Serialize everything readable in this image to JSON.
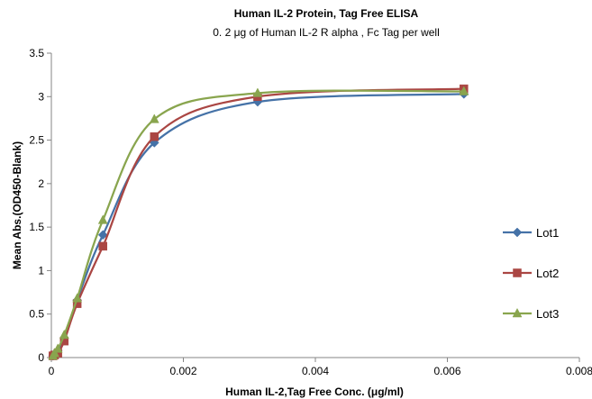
{
  "chart_data": {
    "type": "line",
    "title": "Human IL-2 Protein, Tag Free ELISA",
    "subtitle": "0. 2 μg of  Human IL-2 R alpha , Fc Tag  per well",
    "xlabel": "Human IL-2,Tag Free Conc. (μg/ml)",
    "ylabel": "Mean Abs.(OD450-Blank)",
    "xlim": [
      0,
      0.008
    ],
    "ylim": [
      0,
      3.5
    ],
    "xticks": [
      "0",
      "0.002",
      "0.004",
      "0.006",
      "0.008"
    ],
    "yticks": [
      "0",
      "0.5",
      "1",
      "1.5",
      "2",
      "2.5",
      "3",
      "3.5"
    ],
    "grid": false,
    "legend": "right",
    "series": [
      {
        "name": "Lot1",
        "color": "#4572A7",
        "marker": "diamond",
        "x": [
          2.44e-05,
          4.88e-05,
          9.77e-05,
          0.000195,
          0.000391,
          0.000781,
          0.00156,
          0.003125,
          0.00625
        ],
        "y": [
          0.02,
          0.04,
          0.08,
          0.22,
          0.66,
          1.41,
          2.47,
          2.94,
          3.03
        ]
      },
      {
        "name": "Lot2",
        "color": "#AA4643",
        "marker": "square",
        "x": [
          2.44e-05,
          4.88e-05,
          9.77e-05,
          0.000195,
          0.000391,
          0.000781,
          0.00156,
          0.003125,
          0.00625
        ],
        "y": [
          0.02,
          0.03,
          0.05,
          0.19,
          0.62,
          1.28,
          2.54,
          3.0,
          3.09
        ]
      },
      {
        "name": "Lot3",
        "color": "#89A54E",
        "marker": "triangle",
        "x": [
          2.44e-05,
          4.88e-05,
          9.77e-05,
          0.000195,
          0.000391,
          0.000781,
          0.00156,
          0.003125,
          0.00625
        ],
        "y": [
          0.02,
          0.05,
          0.1,
          0.26,
          0.68,
          1.58,
          2.74,
          3.04,
          3.06
        ]
      }
    ]
  }
}
